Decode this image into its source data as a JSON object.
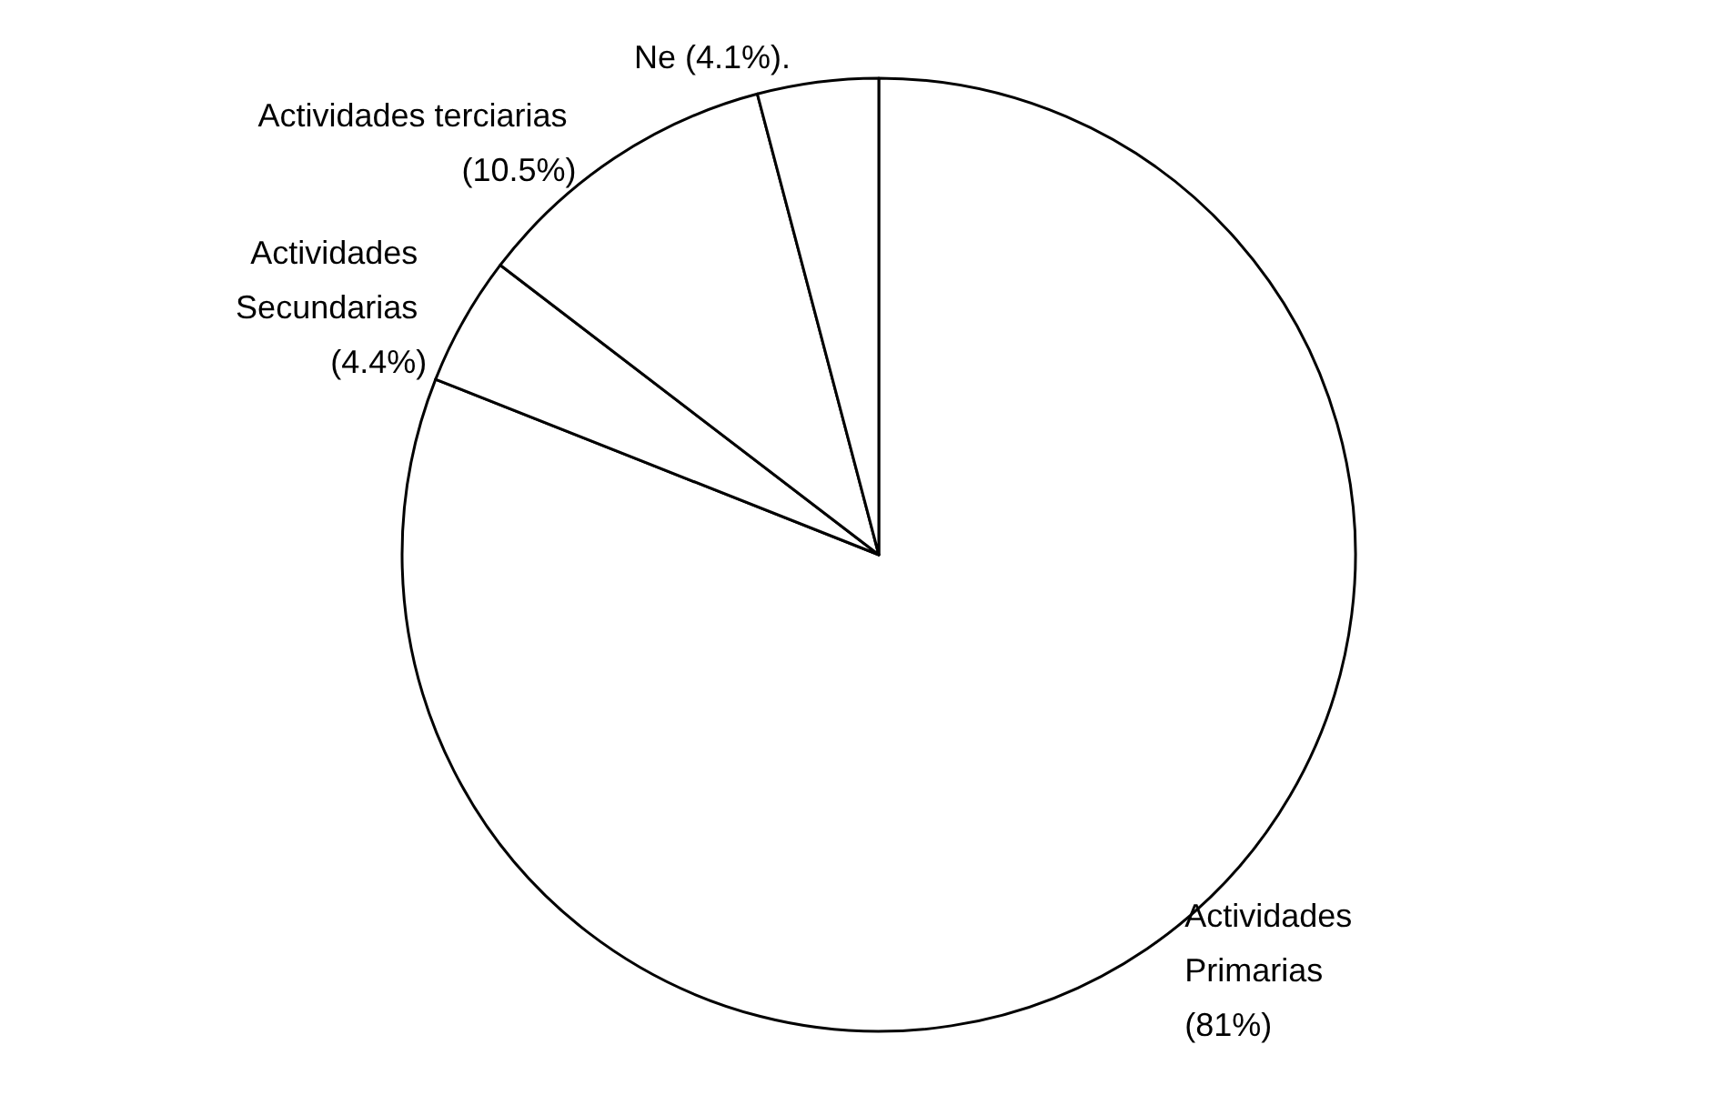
{
  "chart_data": {
    "type": "pie",
    "categories": [
      "Actividades Primarias",
      "Actividades Secundarias",
      "Actividades terciarias",
      "Ne"
    ],
    "values": [
      81,
      4.4,
      10.5,
      4.1
    ],
    "value_labels": [
      "(81%)",
      "(4.4%)",
      "(10.5%)",
      "(4.1%)."
    ],
    "colors": [
      "#ffffff",
      "#ffffff",
      "#ffffff",
      "#ffffff"
    ],
    "legend": false
  }
}
